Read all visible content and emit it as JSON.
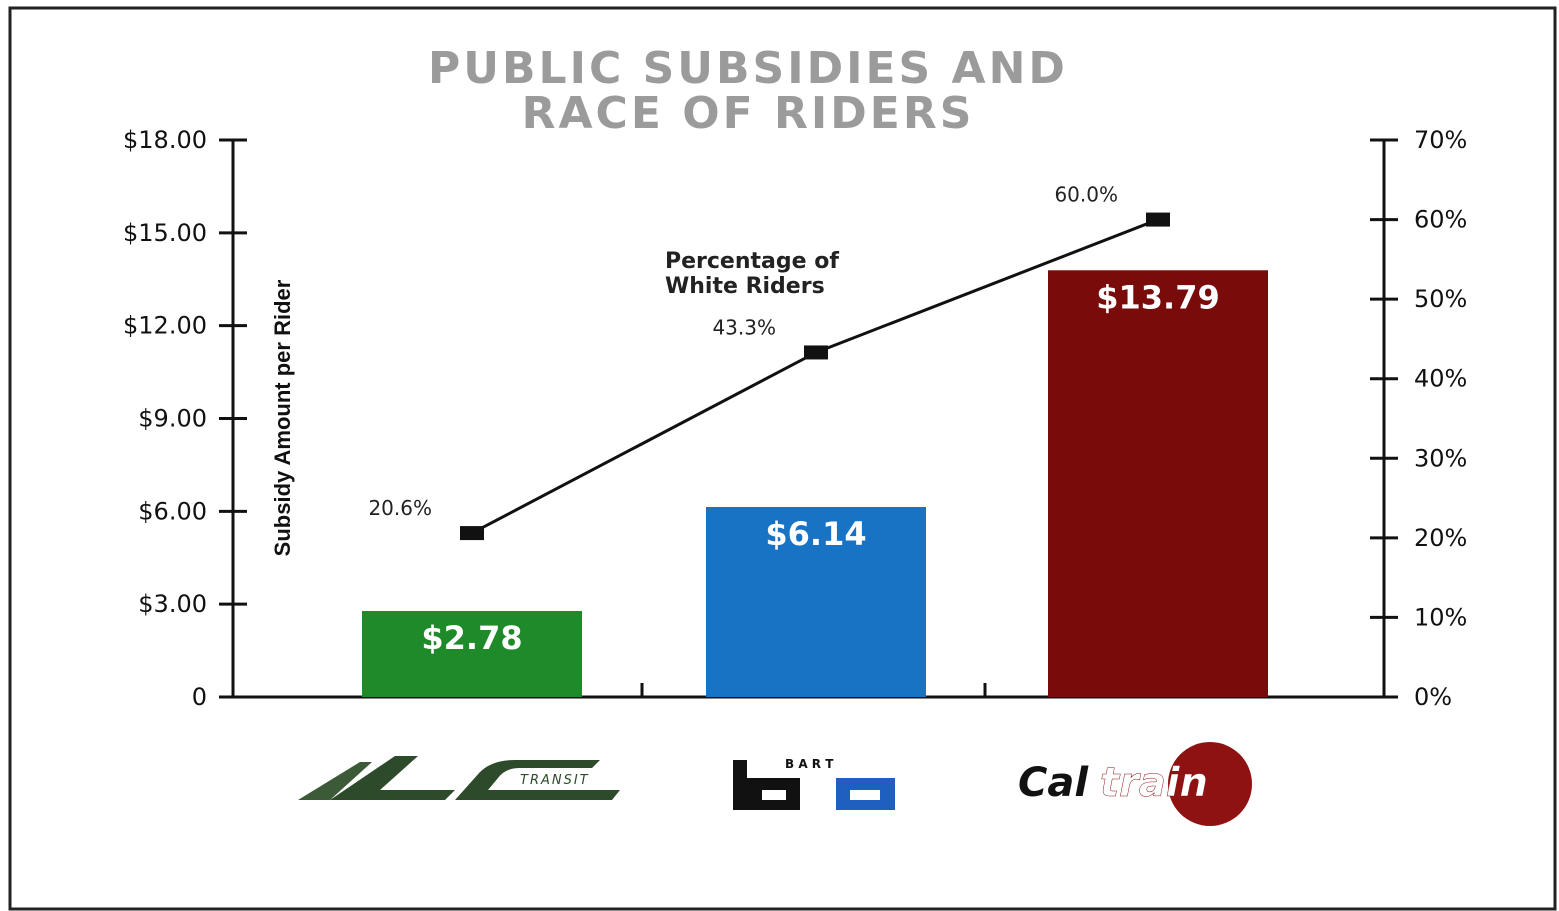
{
  "chart_data": {
    "type": "bar",
    "title_lines": [
      "PUBLIC SUBSIDIES AND",
      "RACE OF RIDERS"
    ],
    "categories": [
      "AC Transit",
      "BART",
      "Caltrain"
    ],
    "ylabel": "Subsidy Amount per Rider",
    "ylim": [
      0,
      18
    ],
    "y_ticks": [
      "0",
      "$3.00",
      "$6.00",
      "$9.00",
      "$12.00",
      "$15.00",
      "$18.00"
    ],
    "y_tick_values": [
      0,
      3,
      6,
      9,
      12,
      15,
      18
    ],
    "y2lim": [
      0,
      70
    ],
    "y2_ticks": [
      "0%",
      "10%",
      "20%",
      "30%",
      "40%",
      "50%",
      "60%",
      "70%"
    ],
    "y2_tick_values": [
      0,
      10,
      20,
      30,
      40,
      50,
      60,
      70
    ],
    "bars": {
      "values": [
        2.78,
        6.14,
        13.79
      ],
      "labels": [
        "$2.78",
        "$6.14",
        "$13.79"
      ],
      "colors": [
        "#1e8a2a",
        "#1873c4",
        "#7a0b0b"
      ]
    },
    "line": {
      "name_lines": [
        "Percentage of",
        "White Riders"
      ],
      "values": [
        20.6,
        43.3,
        60.0
      ],
      "labels": [
        "20.6%",
        "43.3%",
        "60.0%"
      ],
      "color": "#111111"
    },
    "grid": false
  },
  "logos": {
    "actransit": {
      "text": "TRANSIT",
      "color": "#2d4a2a"
    },
    "bart": {
      "text": "B A R T",
      "color": "#1f5fbf"
    },
    "caltrain": {
      "text_left": "Cal",
      "text_right": "train",
      "circle_color": "#8e1212"
    }
  }
}
